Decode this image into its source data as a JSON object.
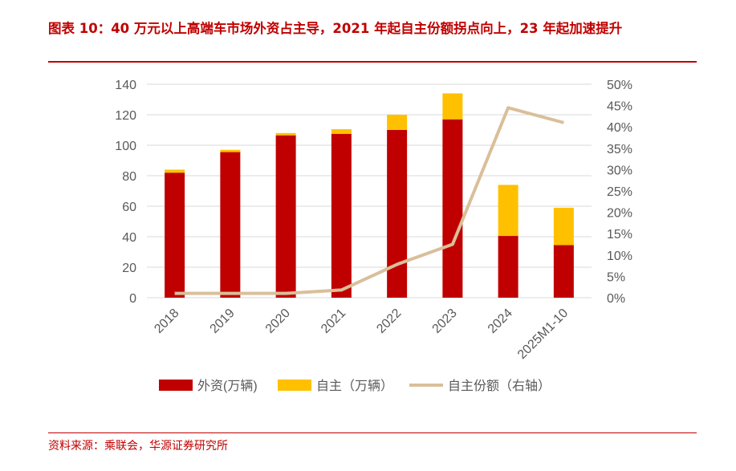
{
  "title": "图表 10：40 万元以上高端车市场外资占主导，2021 年起自主份额拐点向上，23 年起加速提升",
  "source": "资料来源：乘联会，华源证券研究所",
  "chart_data": {
    "type": "bar",
    "stacked": true,
    "categories": [
      "2018",
      "2019",
      "2020",
      "2021",
      "2022",
      "2023",
      "2024",
      "2025M1-10"
    ],
    "series": [
      {
        "name": "外资(万辆)",
        "type": "bar",
        "color": "#c00000",
        "values": [
          82,
          95.5,
          106.5,
          107.5,
          110,
          117,
          40.5,
          34.5
        ]
      },
      {
        "name": "自主（万辆）",
        "type": "bar",
        "color": "#ffc000",
        "values": [
          2,
          1.5,
          1.5,
          3,
          10,
          17,
          33.5,
          24.5
        ]
      },
      {
        "name": "自主份额（右轴）",
        "type": "line",
        "axis": "right",
        "color": "#d9bf9a",
        "values": [
          1.0,
          1.0,
          1.0,
          1.8,
          7.8,
          12.5,
          44.5,
          41.0
        ]
      }
    ],
    "left_axis": {
      "min": 0,
      "max": 140,
      "ticks": [
        "0",
        "20",
        "40",
        "60",
        "80",
        "100",
        "120",
        "140"
      ]
    },
    "right_axis": {
      "min": 0,
      "max": 50,
      "ticks": [
        "0%",
        "5%",
        "10%",
        "15%",
        "20%",
        "25%",
        "30%",
        "35%",
        "40%",
        "45%",
        "50%"
      ]
    },
    "grid": true,
    "legend": "bottom"
  }
}
